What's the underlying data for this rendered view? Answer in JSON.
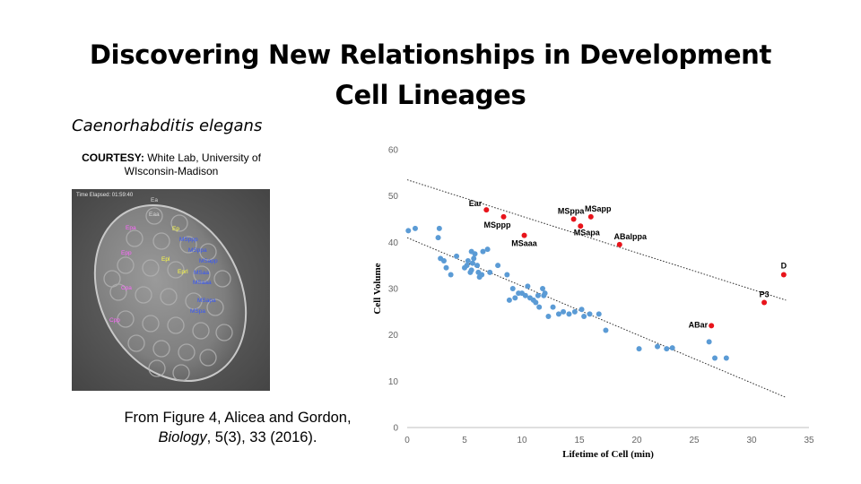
{
  "title": {
    "line1": "Discovering New Relationships in Development",
    "line2": "Cell Lineages"
  },
  "species": "Caenorhabditis elegans",
  "courtesy": {
    "label": "COURTESY:",
    "text": "White Lab, University of WIsconsin-Madison"
  },
  "micrograph": {
    "time_elapsed": "Time Elapsed: 01:59:40",
    "cell_labels": [
      {
        "text": "Ea",
        "color": "#d8d8d8"
      },
      {
        "text": "Eaa",
        "color": "#d8d8d8"
      },
      {
        "text": "Epa",
        "color": "#ff66ff"
      },
      {
        "text": "Ep",
        "color": "#ffff44"
      },
      {
        "text": "MSppp",
        "color": "#3355ff"
      },
      {
        "text": "Epp",
        "color": "#ff66ff"
      },
      {
        "text": "MSppa",
        "color": "#3355ff"
      },
      {
        "text": "Epl",
        "color": "#ffff44"
      },
      {
        "text": "MSapp",
        "color": "#3355ff"
      },
      {
        "text": "Eprl",
        "color": "#ffff44"
      },
      {
        "text": "MSaa",
        "color": "#3355ff"
      },
      {
        "text": "Cpa",
        "color": "#ff66ff"
      },
      {
        "text": "MSaaa",
        "color": "#3355ff"
      },
      {
        "text": "MSapa",
        "color": "#3355ff"
      },
      {
        "text": "MSpa",
        "color": "#3355ff"
      },
      {
        "text": "Cpp",
        "color": "#ff66ff"
      }
    ]
  },
  "citation": {
    "line1": "From Figure 4, Alicea and Gordon,",
    "journal": "Biology",
    "rest": ",  5(3), 33 (2016)."
  },
  "chart_data": {
    "type": "scatter",
    "xlabel": "Lifetime of Cell (min)",
    "ylabel": "Cell Volume",
    "xlim": [
      0,
      35
    ],
    "ylim": [
      0,
      60
    ],
    "xticks": [
      "0",
      "5",
      "10",
      "15",
      "20",
      "25",
      "30",
      "35"
    ],
    "yticks": [
      "0",
      "10",
      "20",
      "30",
      "40",
      "50",
      "60"
    ],
    "grid": false,
    "colors": {
      "blue": "#5b9bd5",
      "red": "#e8141b",
      "trend": "#333333"
    },
    "series": [
      {
        "color": "blue",
        "points": [
          [
            0.1,
            42.5
          ],
          [
            0.7,
            43
          ],
          [
            2.8,
            43
          ],
          [
            2.7,
            41
          ],
          [
            2.9,
            36.5
          ],
          [
            3.2,
            36
          ],
          [
            3.4,
            34.5
          ],
          [
            3.8,
            33
          ],
          [
            4.3,
            37
          ],
          [
            5,
            34.5
          ],
          [
            5.2,
            35
          ],
          [
            5.3,
            36
          ],
          [
            5.5,
            33.5
          ],
          [
            5.6,
            34
          ],
          [
            5.7,
            35.5
          ],
          [
            5.8,
            36.5
          ],
          [
            5.6,
            38
          ],
          [
            5.9,
            37.5
          ],
          [
            6.1,
            35
          ],
          [
            6.2,
            33.5
          ],
          [
            6.3,
            32.5
          ],
          [
            6.5,
            33
          ],
          [
            6.6,
            38
          ],
          [
            7,
            38.5
          ],
          [
            7.2,
            33.5
          ],
          [
            7.9,
            35
          ],
          [
            8.7,
            33
          ],
          [
            8.9,
            27.5
          ],
          [
            9.2,
            30
          ],
          [
            9.4,
            28
          ],
          [
            9.7,
            29
          ],
          [
            10,
            29
          ],
          [
            10.3,
            28.5
          ],
          [
            10.5,
            30.5
          ],
          [
            10.7,
            28
          ],
          [
            11,
            27.5
          ],
          [
            11.2,
            27
          ],
          [
            11.4,
            28.5
          ],
          [
            11.5,
            26
          ],
          [
            11.8,
            30
          ],
          [
            11.9,
            28.5
          ],
          [
            12,
            29
          ],
          [
            12.3,
            24
          ],
          [
            12.7,
            26
          ],
          [
            13.2,
            24.5
          ],
          [
            13.6,
            25
          ],
          [
            14.1,
            24.5
          ],
          [
            14.6,
            25
          ],
          [
            15.2,
            25.5
          ],
          [
            15.4,
            24
          ],
          [
            15.9,
            24.5
          ],
          [
            16.7,
            24.5
          ],
          [
            17.3,
            21
          ],
          [
            20.2,
            17
          ],
          [
            21.8,
            17.5
          ],
          [
            22.6,
            17
          ],
          [
            23.1,
            17.2
          ],
          [
            26.3,
            18.5
          ],
          [
            26.8,
            15
          ],
          [
            27.8,
            15
          ]
        ]
      },
      {
        "color": "red",
        "points": [
          [
            6.9,
            47
          ],
          [
            8.4,
            45.5
          ],
          [
            10.2,
            41.5
          ],
          [
            14.5,
            45
          ],
          [
            15.1,
            43.5
          ],
          [
            16,
            45.5
          ],
          [
            18.5,
            39.5
          ],
          [
            26.5,
            22
          ],
          [
            31.1,
            27
          ],
          [
            32.8,
            33
          ]
        ]
      }
    ],
    "annotations": [
      {
        "text": "Ear",
        "x": 6.9,
        "y": 47
      },
      {
        "text": "MSppp",
        "x": 8.4,
        "y": 45.5
      },
      {
        "text": "MSaaa",
        "x": 10.2,
        "y": 41.5
      },
      {
        "text": "MSppa",
        "x": 14.5,
        "y": 45
      },
      {
        "text": "MSapp",
        "x": 16,
        "y": 45.5
      },
      {
        "text": "MSapa",
        "x": 15.1,
        "y": 43.5
      },
      {
        "text": "ABalppa",
        "x": 18.5,
        "y": 39.5
      },
      {
        "text": "ABar",
        "x": 26.5,
        "y": 22
      },
      {
        "text": "P3",
        "x": 31.1,
        "y": 27
      },
      {
        "text": "D",
        "x": 32.8,
        "y": 33
      }
    ],
    "trendlines": [
      {
        "from": [
          0,
          53.5
        ],
        "to": [
          33,
          27.5
        ]
      },
      {
        "from": [
          0,
          41
        ],
        "to": [
          33,
          6.5
        ]
      }
    ]
  }
}
